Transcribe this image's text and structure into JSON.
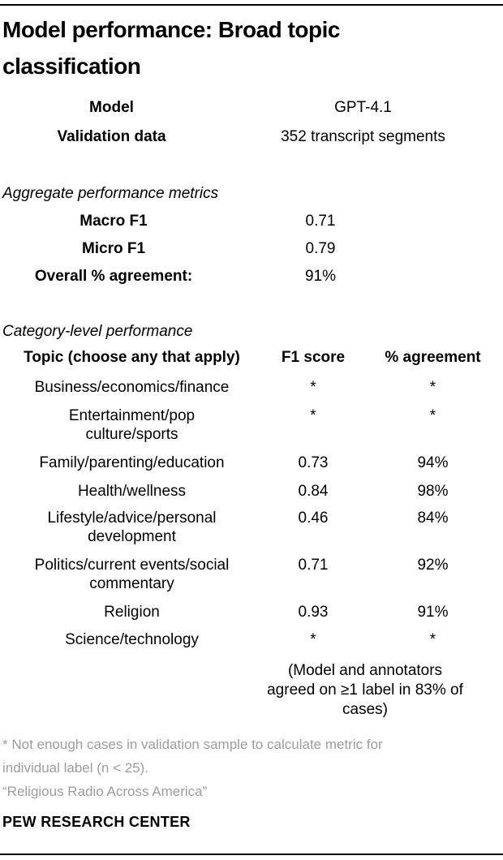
{
  "title": "Model performance: Broad topic\nclassification",
  "model_info": {
    "rows": [
      {
        "label": "Model",
        "value": "GPT-4.1"
      },
      {
        "label": "Validation data",
        "value": "352 transcript segments"
      }
    ]
  },
  "aggregate": {
    "section_label": "Aggregate performance metrics",
    "rows": [
      {
        "label": "Macro F1",
        "value": "0.71"
      },
      {
        "label": "Micro F1",
        "value": "0.79"
      },
      {
        "label": "Overall % agreement:",
        "value": "91%"
      }
    ]
  },
  "category": {
    "section_label": "Category-level performance",
    "columns": [
      "Topic (choose any that apply)",
      "F1 score",
      "% agreement"
    ],
    "rows": [
      {
        "topic": "Business/economics/finance",
        "f1": "*",
        "agreement": "*"
      },
      {
        "topic": "Entertainment/pop\nculture/sports",
        "f1": "*",
        "agreement": "*"
      },
      {
        "topic": "Family/parenting/education",
        "f1": "0.73",
        "agreement": "94%"
      },
      {
        "topic": "Health/wellness",
        "f1": "0.84",
        "agreement": "98%"
      },
      {
        "topic": "Lifestyle/advice/personal\ndevelopment",
        "f1": "0.46",
        "agreement": "84%"
      },
      {
        "topic": "Politics/current events/social\ncommentary",
        "f1": "0.71",
        "agreement": "92%"
      },
      {
        "topic": "Religion",
        "f1": "0.93",
        "agreement": "91%"
      },
      {
        "topic": "Science/technology",
        "f1": "*",
        "agreement": "*"
      }
    ],
    "note": "(Model and annotators\nagreed on ≥1 label in 83% of\ncases)"
  },
  "footnotes": {
    "asterisk_note": "* Not enough cases in validation sample to calculate metric for\nindividual label (n < 25).",
    "source_quote": "“Religious Radio Across America”"
  },
  "meta": {
    "source_label": "PEW RESEARCH CENTER"
  },
  "colors": {
    "text": "#000000",
    "muted_gray": "#9d9d9d",
    "rule": "#000000",
    "background": "#ffffff"
  }
}
